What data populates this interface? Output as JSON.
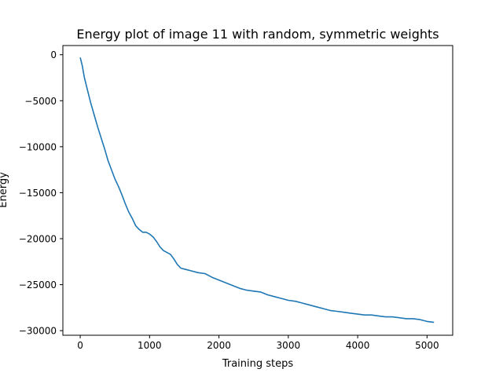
{
  "chart_data": {
    "type": "line",
    "title": "Energy plot of image 11 with random, symmetric weights",
    "xlabel": "Training steps",
    "ylabel": "Energy",
    "xlim": [
      -250,
      5370
    ],
    "ylim": [
      -30500,
      1000
    ],
    "xticks": [
      0,
      1000,
      2000,
      3000,
      4000,
      5000
    ],
    "yticks": [
      0,
      -5000,
      -10000,
      -15000,
      -20000,
      -25000,
      -30000
    ],
    "xtick_labels": [
      "0",
      "1000",
      "2000",
      "3000",
      "4000",
      "5000"
    ],
    "ytick_labels": [
      "0",
      "−5000",
      "−10000",
      "−15000",
      "−20000",
      "−25000",
      "−30000"
    ],
    "grid": false,
    "series": [
      {
        "color": "#1f77b4",
        "x": [
          0,
          30,
          60,
          100,
          150,
          200,
          250,
          300,
          350,
          400,
          450,
          500,
          550,
          600,
          650,
          700,
          750,
          800,
          850,
          900,
          950,
          1000,
          1050,
          1100,
          1150,
          1200,
          1250,
          1300,
          1350,
          1400,
          1450,
          1500,
          1550,
          1600,
          1700,
          1800,
          1900,
          2000,
          2100,
          2200,
          2300,
          2400,
          2500,
          2600,
          2700,
          2800,
          2900,
          3000,
          3100,
          3200,
          3300,
          3400,
          3500,
          3600,
          3700,
          3800,
          3900,
          4000,
          4100,
          4200,
          4300,
          4400,
          4500,
          4600,
          4700,
          4800,
          4900,
          5000,
          5100
        ],
        "y": [
          -300,
          -1200,
          -2500,
          -3700,
          -5200,
          -6500,
          -7800,
          -9000,
          -10200,
          -11500,
          -12500,
          -13500,
          -14300,
          -15200,
          -16200,
          -17100,
          -17800,
          -18600,
          -19000,
          -19300,
          -19300,
          -19500,
          -19800,
          -20300,
          -20900,
          -21300,
          -21500,
          -21700,
          -22200,
          -22800,
          -23200,
          -23300,
          -23400,
          -23500,
          -23700,
          -23800,
          -24200,
          -24500,
          -24800,
          -25100,
          -25400,
          -25600,
          -25700,
          -25800,
          -26100,
          -26300,
          -26500,
          -26700,
          -26800,
          -27000,
          -27200,
          -27400,
          -27600,
          -27800,
          -27900,
          -28000,
          -28100,
          -28200,
          -28300,
          -28300,
          -28400,
          -28500,
          -28500,
          -28600,
          -28700,
          -28700,
          -28800,
          -29000,
          -29100
        ]
      }
    ]
  }
}
